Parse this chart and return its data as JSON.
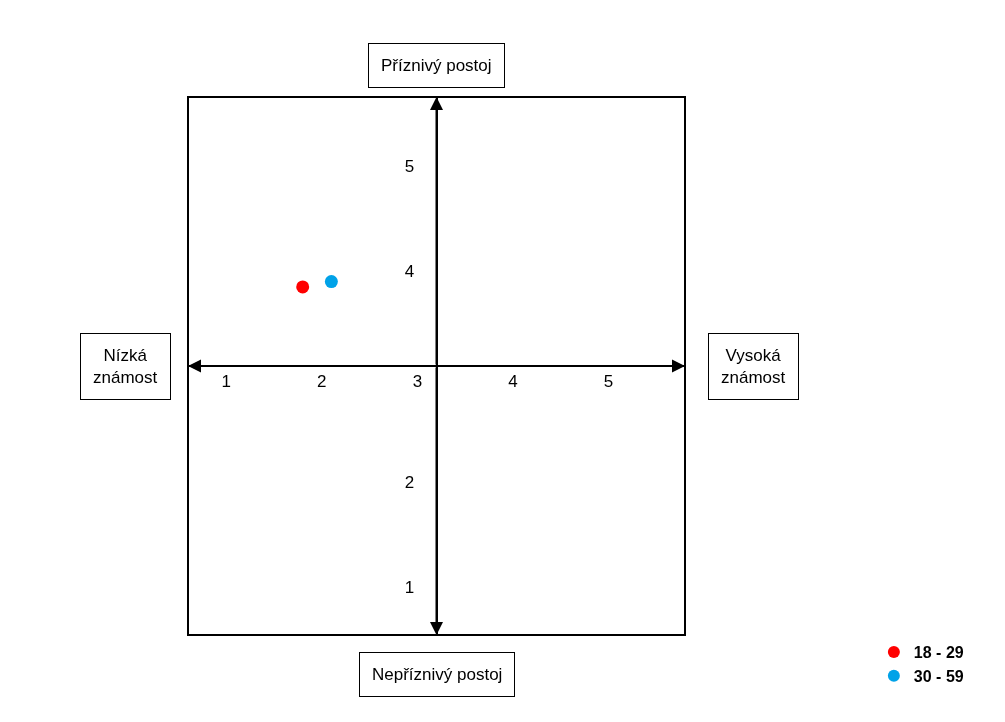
{
  "chart_data": {
    "type": "scatter",
    "series": [
      {
        "name": "18 - 29",
        "color": "#ff0000",
        "x": [
          1.8
        ],
        "values": [
          3.85
        ]
      },
      {
        "name": "30 - 59",
        "color": "#00a2e8",
        "x": [
          2.1
        ],
        "values": [
          3.9
        ]
      }
    ],
    "xlim": [
      0.6,
      5.8
    ],
    "xticks": [
      1,
      2,
      3,
      4,
      5
    ],
    "ylim": [
      0.55,
      5.65
    ],
    "yticks": [
      1,
      2,
      4,
      5
    ],
    "annotations": [
      "Příznivý postoj",
      "Nepříznivý postoj",
      "Nízká\nznámost",
      "Vysoká\nznámost"
    ],
    "grid": false,
    "legend": "bottom right",
    "marker": "circle"
  }
}
